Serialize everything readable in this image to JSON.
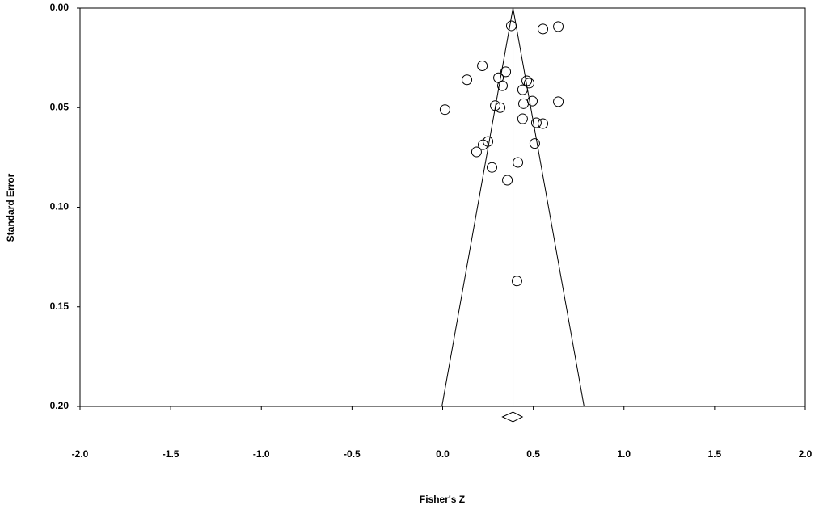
{
  "chart_data": {
    "type": "funnel",
    "x_label": "Fisher's Z",
    "y_label": "Standard Error",
    "xlim": [
      -2.0,
      2.0
    ],
    "ylim": [
      0.0,
      0.2
    ],
    "y_inverted": true,
    "xticks": [
      {
        "value": -2.0,
        "label": "-2.0"
      },
      {
        "value": -1.5,
        "label": "-1.5"
      },
      {
        "value": -1.0,
        "label": "-1.0"
      },
      {
        "value": -0.5,
        "label": "-0.5"
      },
      {
        "value": 0.0,
        "label": "0.0"
      },
      {
        "value": 0.5,
        "label": "0.5"
      },
      {
        "value": 1.0,
        "label": "1.0"
      },
      {
        "value": 1.5,
        "label": "1.5"
      },
      {
        "value": 2.0,
        "label": "2.0"
      }
    ],
    "yticks": [
      {
        "value": 0.0,
        "label": "0.00"
      },
      {
        "value": 0.05,
        "label": "0.05"
      },
      {
        "value": 0.1,
        "label": "0.10"
      },
      {
        "value": 0.15,
        "label": "0.15"
      },
      {
        "value": 0.2,
        "label": "0.20"
      }
    ],
    "color": "#000000",
    "x": [
      0.379,
      0.553,
      0.638,
      0.219,
      0.134,
      0.348,
      0.308,
      0.33,
      0.464,
      0.477,
      0.441,
      0.495,
      0.638,
      0.446,
      0.29,
      0.317,
      0.013,
      0.441,
      0.517,
      0.553,
      0.25,
      0.223,
      0.508,
      0.187,
      0.415,
      0.272,
      0.357,
      0.41
    ],
    "values": [
      0.0089,
      0.0105,
      0.0093,
      0.029,
      0.036,
      0.032,
      0.035,
      0.039,
      0.0365,
      0.0377,
      0.041,
      0.0467,
      0.047,
      0.048,
      0.049,
      0.05,
      0.051,
      0.0556,
      0.0576,
      0.058,
      0.067,
      0.0686,
      0.068,
      0.0722,
      0.0775,
      0.08,
      0.0864,
      0.137
    ],
    "summary": {
      "estimate": 0.388,
      "ci": [
        0.33,
        0.44
      ]
    },
    "funnel_bounds_at_max_se": [
      -0.004,
      0.78
    ]
  }
}
